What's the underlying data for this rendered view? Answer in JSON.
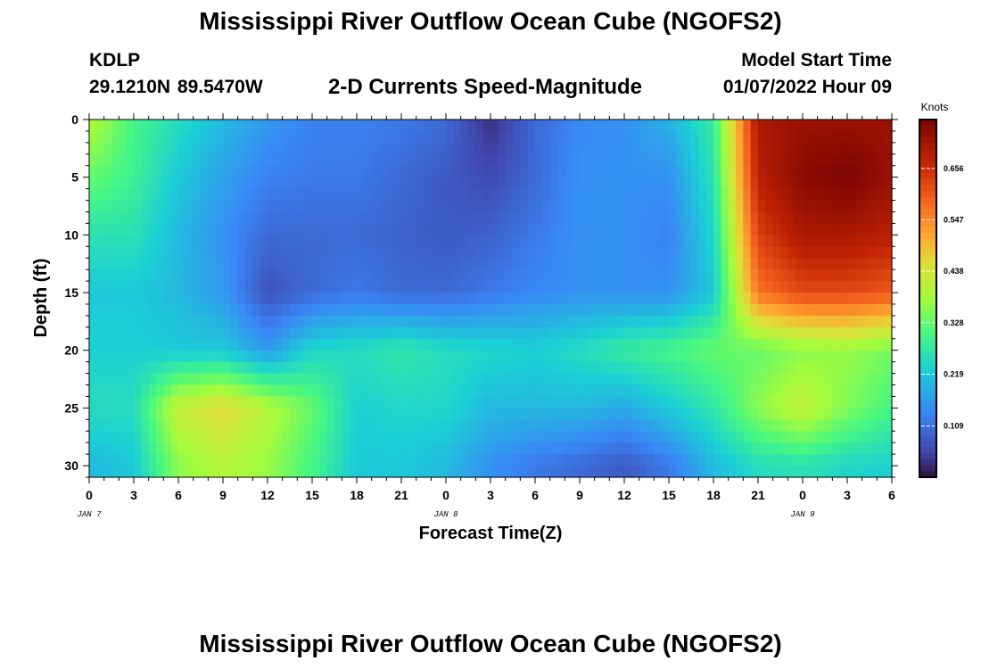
{
  "header": {
    "title": "Mississippi River Outflow Ocean Cube (NGOFS2)",
    "station_id": "KDLP",
    "station_coords": "29.1210N  89.5470W",
    "product_title": "2-D Currents Speed-Magnitude",
    "model_start_label": "Model Start Time",
    "model_start_value": "01/07/2022 Hour 09"
  },
  "footer": {
    "title": "Mississippi River Outflow Ocean Cube (NGOFS2)"
  },
  "chart_data": {
    "type": "heatmap",
    "xlabel": "Forecast Time(Z)",
    "ylabel": "Depth (ft)",
    "x_tick_labels": [
      "0",
      "3",
      "6",
      "9",
      "12",
      "15",
      "18",
      "21",
      "0",
      "3",
      "6",
      "9",
      "12",
      "15",
      "18",
      "21",
      "0",
      "3",
      "6"
    ],
    "x_date_labels": [
      {
        "hour_index": 12,
        "text": "JAN 7"
      },
      {
        "hour_index": 36,
        "text": "JAN 8"
      },
      {
        "hour_index": 60,
        "text": "JAN 9"
      }
    ],
    "x_range_hours": [
      0,
      54
    ],
    "y_tick_labels": [
      "0",
      "5",
      "10",
      "15",
      "20",
      "25",
      "30"
    ],
    "ylim": [
      0,
      31
    ],
    "y_inverted": true,
    "colorbar": {
      "unit": "Knots",
      "min": 0.0,
      "max": 0.76,
      "tick_values": [
        0.109,
        0.219,
        0.328,
        0.438,
        0.547,
        0.656
      ],
      "tick_labels": [
        "0.109",
        "0.219",
        "0.328",
        "0.438",
        "0.547",
        "0.656"
      ]
    },
    "grid_hours": [
      0,
      3,
      6,
      9,
      12,
      15,
      18,
      21,
      24,
      27,
      30,
      33,
      36,
      39,
      42,
      45,
      48,
      51,
      54
    ],
    "grid_depths": [
      0,
      5,
      10,
      15,
      20,
      25,
      30
    ],
    "values": [
      [
        0.4,
        0.3,
        0.25,
        0.2,
        0.16,
        0.13,
        0.13,
        0.12,
        0.1,
        0.03,
        0.1,
        0.14,
        0.15,
        0.19,
        0.28,
        0.7,
        0.72,
        0.72,
        0.72
      ],
      [
        0.33,
        0.29,
        0.22,
        0.17,
        0.13,
        0.12,
        0.12,
        0.1,
        0.08,
        0.06,
        0.1,
        0.15,
        0.15,
        0.15,
        0.26,
        0.68,
        0.74,
        0.76,
        0.72
      ],
      [
        0.26,
        0.26,
        0.2,
        0.15,
        0.1,
        0.1,
        0.1,
        0.09,
        0.08,
        0.09,
        0.12,
        0.15,
        0.15,
        0.13,
        0.24,
        0.63,
        0.7,
        0.7,
        0.68
      ],
      [
        0.22,
        0.22,
        0.2,
        0.16,
        0.07,
        0.1,
        0.12,
        0.1,
        0.1,
        0.12,
        0.14,
        0.15,
        0.15,
        0.15,
        0.22,
        0.57,
        0.62,
        0.62,
        0.6
      ],
      [
        0.23,
        0.23,
        0.22,
        0.22,
        0.16,
        0.24,
        0.25,
        0.27,
        0.25,
        0.24,
        0.23,
        0.25,
        0.28,
        0.3,
        0.33,
        0.33,
        0.36,
        0.37,
        0.34
      ],
      [
        0.25,
        0.25,
        0.42,
        0.46,
        0.4,
        0.33,
        0.23,
        0.24,
        0.24,
        0.2,
        0.2,
        0.2,
        0.18,
        0.22,
        0.27,
        0.36,
        0.42,
        0.35,
        0.3
      ],
      [
        0.2,
        0.22,
        0.36,
        0.4,
        0.37,
        0.3,
        0.22,
        0.22,
        0.2,
        0.15,
        0.12,
        0.1,
        0.08,
        0.12,
        0.2,
        0.25,
        0.26,
        0.24,
        0.23
      ]
    ]
  }
}
